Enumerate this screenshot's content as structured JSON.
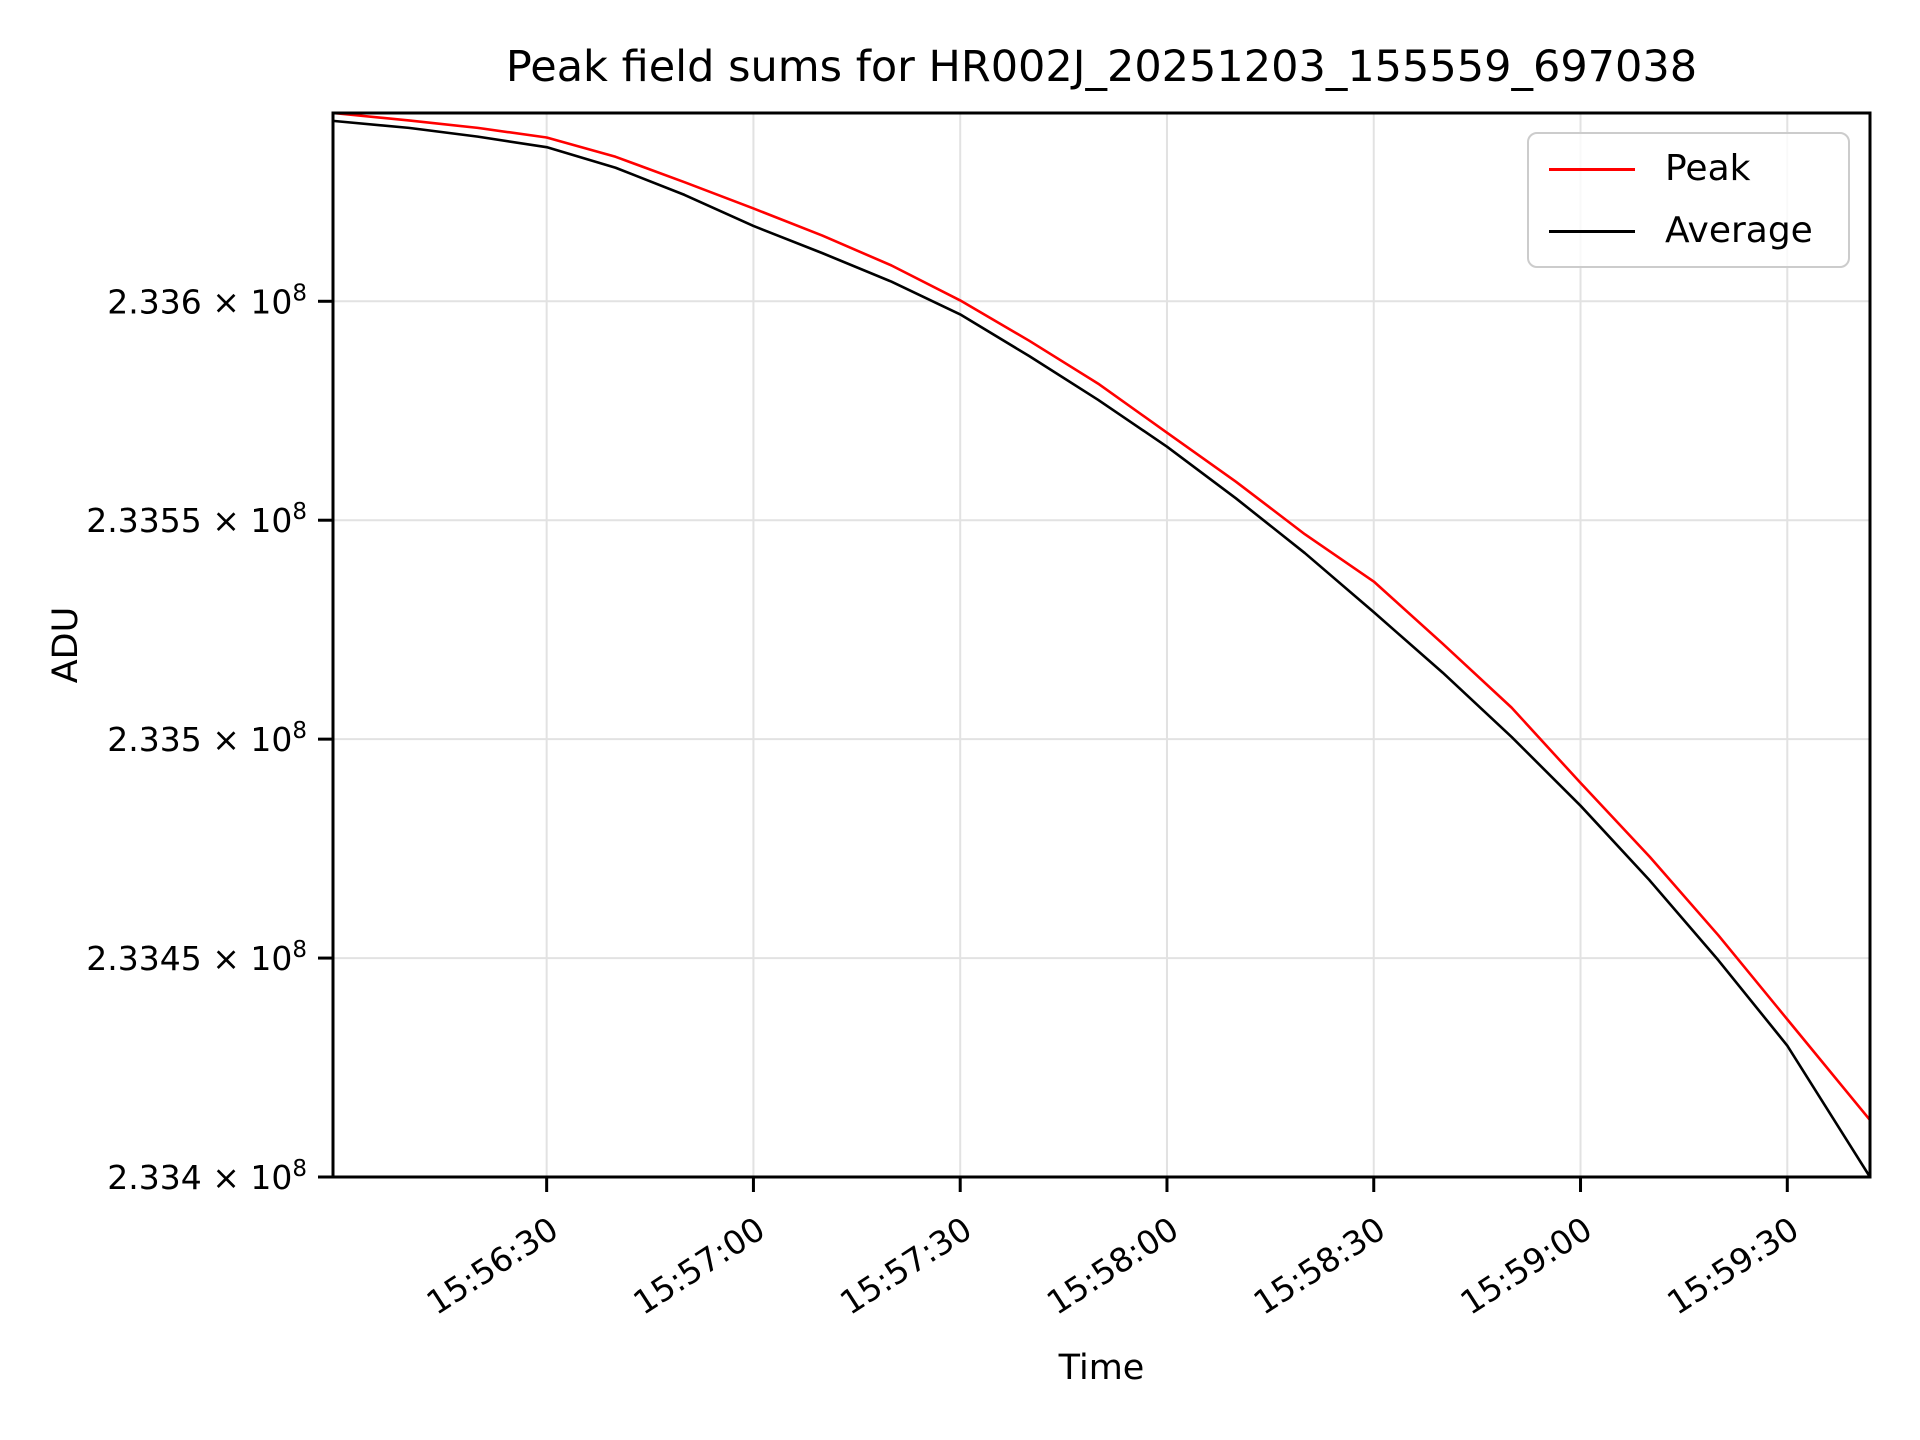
{
  "chart_data": {
    "type": "line",
    "title": "Peak field sums for HR002J_20251203_155559_697038",
    "xlabel": "Time",
    "ylabel": "ADU",
    "grid": true,
    "legend_position": "upper-right",
    "colors": {
      "grid": "#e2e2e2",
      "spine": "#000000",
      "background": "#ffffff",
      "text": "#000000"
    },
    "xlim": [
      "15:55:59",
      "15:59:42"
    ],
    "ylim": [
      233400000,
      233643000
    ],
    "xticks": [
      "15:56:30",
      "15:57:00",
      "15:57:30",
      "15:58:00",
      "15:58:30",
      "15:59:00",
      "15:59:30"
    ],
    "yticks": [
      {
        "value": 233600000,
        "mantissa": "2.336",
        "exponent": "8"
      },
      {
        "value": 233550000,
        "mantissa": "2.3355",
        "exponent": "8"
      },
      {
        "value": 233500000,
        "mantissa": "2.335",
        "exponent": "8"
      },
      {
        "value": 233450000,
        "mantissa": "2.3345",
        "exponent": "8"
      },
      {
        "value": 233400000,
        "mantissa": "2.334",
        "exponent": "8"
      }
    ],
    "x": [
      "15:55:59",
      "15:56:10",
      "15:56:20",
      "15:56:30",
      "15:56:40",
      "15:56:50",
      "15:57:00",
      "15:57:10",
      "15:57:20",
      "15:57:30",
      "15:57:40",
      "15:57:50",
      "15:58:00",
      "15:58:10",
      "15:58:20",
      "15:58:30",
      "15:58:40",
      "15:58:50",
      "15:59:00",
      "15:59:10",
      "15:59:20",
      "15:59:30",
      "15:59:42"
    ],
    "series": [
      {
        "name": "Peak",
        "color": "#ff0000",
        "values": [
          233643000,
          233641300,
          233639600,
          233637400,
          233633000,
          233627200,
          233621200,
          233615000,
          233608200,
          233600200,
          233591000,
          233581200,
          233570000,
          233558800,
          233546800,
          233536000,
          233521800,
          233507200,
          233490000,
          233473200,
          233455200,
          233436000,
          233413000
        ]
      },
      {
        "name": "Average",
        "color": "#000000",
        "values": [
          233641200,
          233639600,
          233637600,
          233635200,
          233630500,
          233624300,
          233617200,
          233611000,
          233604500,
          233597000,
          233587500,
          233577500,
          233566800,
          233555000,
          233542500,
          233529000,
          233515200,
          233500500,
          233484800,
          233467800,
          233449500,
          233430000,
          233400000
        ]
      }
    ]
  }
}
